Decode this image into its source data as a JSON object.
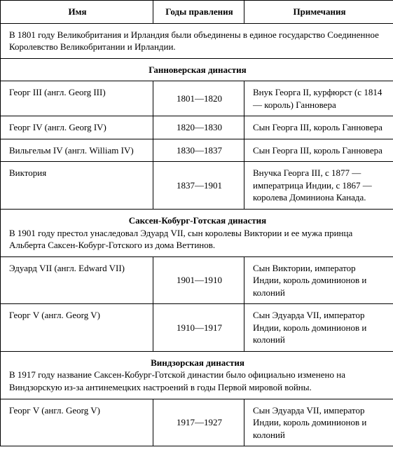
{
  "headers": {
    "name": "Имя",
    "years": "Годы правления",
    "notes": "Примечания"
  },
  "intro": "В 1801 году Великобритания и Ирландия были объединены в единое государство Соединенное Королевство Великобритании и Ирландии.",
  "dynasties": [
    {
      "title": "Ганноверская династия",
      "body": "",
      "rows": [
        {
          "name": "Георг III (англ. Georg III)",
          "years": "1801—1820",
          "notes": "Внук Георга II, курфюрст (с 1814 — король) Ганновера"
        },
        {
          "name": "Георг IV (англ. Georg IV)",
          "years": "1820—1830",
          "notes": "Сын Георга III, король Ганновера"
        },
        {
          "name": "Вильгельм IV (англ. William IV)",
          "years": "1830—1837",
          "notes": "Сын Георга III, король Ганновера"
        },
        {
          "name": "Виктория",
          "years": "1837—1901",
          "notes": "Внучка Георга III, с 1877 — императрица Индии, с 1867 — королева Доминиона Канада."
        }
      ]
    },
    {
      "title": "Саксен-Кобург-Готская династия",
      "body": "В 1901 году престол унаследовал Эдуард VII, сын королевы Виктории и ее мужа принца Альберта Саксен-Кобург-Готского из дома Веттинов.",
      "rows": [
        {
          "name": "Эдуард VII (англ. Edward VII)",
          "years": "1901—1910",
          "notes": "Сын Виктории, император Индии, король доминионов и колоний"
        },
        {
          "name": "Георг V (англ. Georg V)",
          "years": "1910—1917",
          "notes": "Сын Эдуарда VII, император Индии, король доминионов и колоний"
        }
      ]
    },
    {
      "title": "Виндзорская династия",
      "body": "В 1917 году название Саксен-Кобург-Готской династии было официально изменено на Виндзорскую из-за антинемецких настроений в годы Первой мировой войны.",
      "rows": [
        {
          "name": "Георг V (англ. Georg V)",
          "years": "1917—1927",
          "notes": "Сын Эдуарда VII, император Индии, король доминионов и колоний"
        }
      ]
    }
  ]
}
